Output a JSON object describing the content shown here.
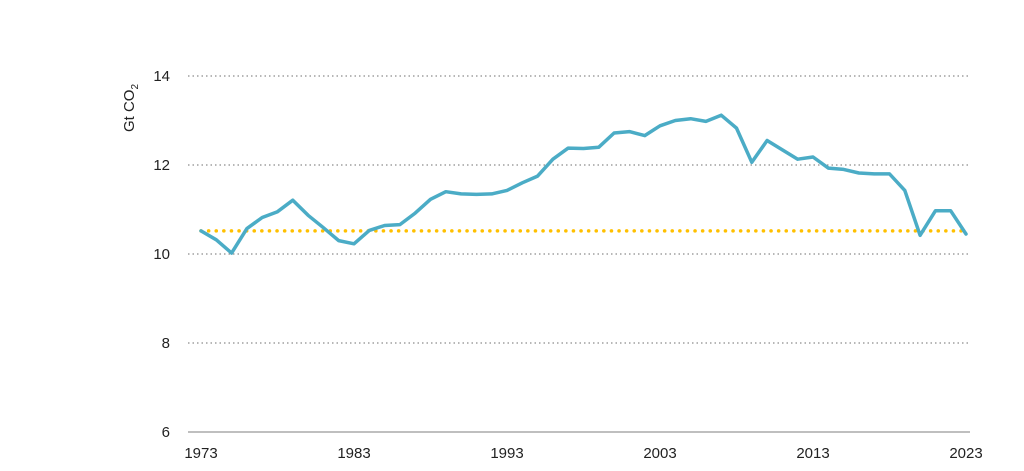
{
  "chart_data": {
    "type": "line",
    "ylabel_prefix": "Gt CO",
    "ylabel_subscript": "2",
    "ylim": [
      6,
      14
    ],
    "yticks": [
      14,
      12,
      10,
      8,
      6
    ],
    "xlim": [
      1973,
      2023
    ],
    "xticks": [
      1973,
      1983,
      1993,
      2003,
      2013,
      2023
    ],
    "grid": "horizontal dotted",
    "colors": {
      "series": "#4bacc6",
      "reference": "#ffc000",
      "grid": "#8c8c8c"
    },
    "x": [
      1973,
      1974,
      1975,
      1976,
      1977,
      1978,
      1979,
      1980,
      1981,
      1982,
      1983,
      1984,
      1985,
      1986,
      1987,
      1988,
      1989,
      1990,
      1991,
      1992,
      1993,
      1994,
      1995,
      1996,
      1997,
      1998,
      1999,
      2000,
      2001,
      2002,
      2003,
      2004,
      2005,
      2006,
      2007,
      2008,
      2009,
      2010,
      2011,
      2012,
      2013,
      2014,
      2015,
      2016,
      2017,
      2018,
      2019,
      2020,
      2021,
      2022,
      2023
    ],
    "series": [
      {
        "values": [
          10.52,
          10.32,
          10.02,
          10.57,
          10.82,
          10.95,
          11.21,
          10.87,
          10.59,
          10.3,
          10.23,
          10.53,
          10.64,
          10.66,
          10.92,
          11.23,
          11.4,
          11.35,
          11.34,
          11.35,
          11.43,
          11.6,
          11.75,
          12.13,
          12.38,
          12.37,
          12.4,
          12.72,
          12.75,
          12.66,
          12.88,
          13.0,
          13.04,
          12.98,
          13.12,
          12.83,
          12.06,
          12.55,
          12.34,
          12.13,
          12.18,
          11.93,
          11.9,
          11.82,
          11.8,
          11.8,
          11.43,
          10.42,
          10.97,
          10.97,
          10.45
        ]
      }
    ],
    "reference_line": {
      "value": 10.52,
      "style": "dotted"
    }
  }
}
